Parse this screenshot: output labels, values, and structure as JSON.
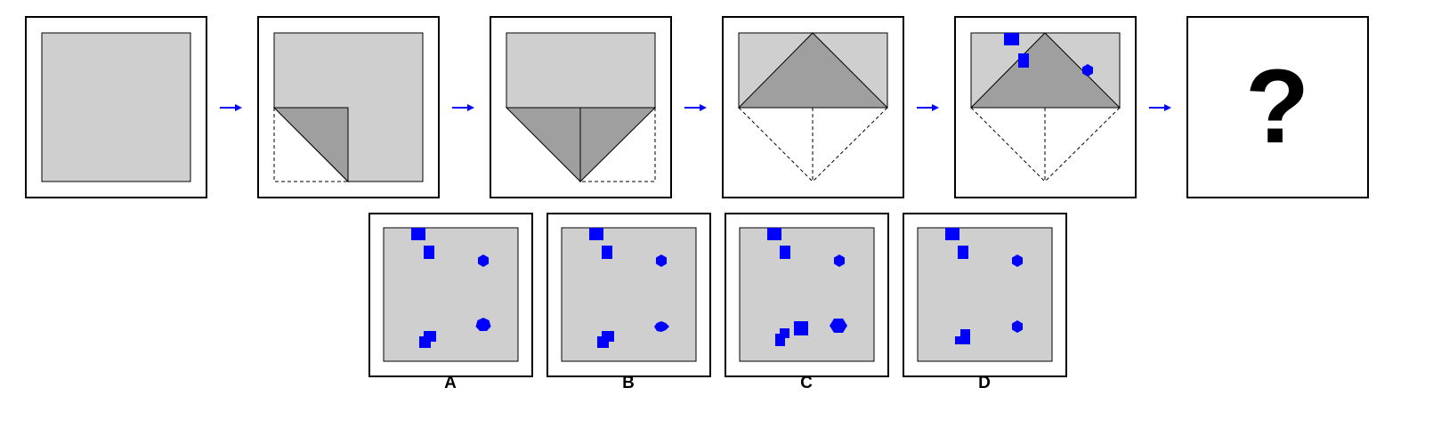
{
  "puzzle": {
    "question_mark": "?",
    "options": [
      {
        "label": "A"
      },
      {
        "label": "B"
      },
      {
        "label": "C"
      },
      {
        "label": "D"
      }
    ]
  },
  "colors": {
    "paper": "#cfcfcf",
    "fold": "#9f9f9f",
    "punch": "#0000ff",
    "arrow": "#0000ff",
    "frame": "#000000"
  }
}
